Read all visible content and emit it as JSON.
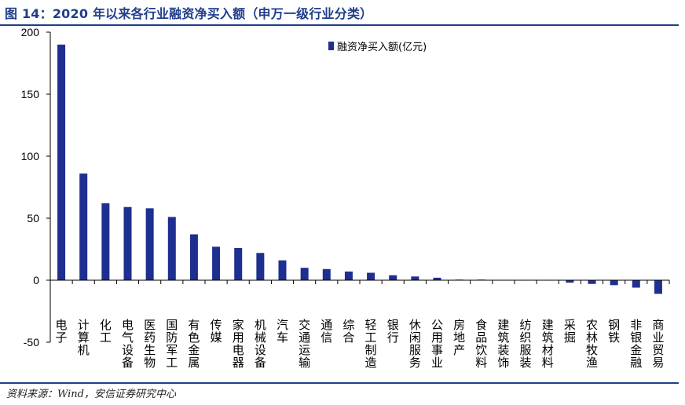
{
  "header": {
    "title": "图 14：2020 年以来各行业融资净买入额（申万一级行业分类）"
  },
  "footer": {
    "source": "资料来源：Wind，安信证券研究中心"
  },
  "chart_data": {
    "type": "bar",
    "title": "2020 年以来各行业融资净买入额（申万一级行业分类）",
    "xlabel": "",
    "ylabel": "",
    "ylim": [
      -50,
      200
    ],
    "yticks": [
      -50,
      0,
      50,
      100,
      150,
      200
    ],
    "legend": {
      "position": "top-right",
      "label": "融资净买入额(亿元)"
    },
    "bar_color": "#1f2f8f",
    "categories": [
      "电子",
      "计算机",
      "化工",
      "电气设备",
      "医药生物",
      "国防军工",
      "有色金属",
      "传媒",
      "家用电器",
      "机械设备",
      "汽车",
      "交通运输",
      "通信",
      "综合",
      "轻工制造",
      "银行",
      "休闲服务",
      "公用事业",
      "房地产",
      "食品饮料",
      "建筑装饰",
      "纺织服装",
      "建筑材料",
      "采掘",
      "农林牧渔",
      "钢铁",
      "非银金融",
      "商业贸易"
    ],
    "values": [
      190,
      86,
      62,
      59,
      58,
      51,
      37,
      27,
      26,
      22,
      16,
      10,
      9,
      7,
      6,
      4,
      3,
      2,
      0.5,
      0.5,
      0,
      0,
      0,
      -2,
      -3,
      -4,
      -6,
      -11
    ]
  }
}
